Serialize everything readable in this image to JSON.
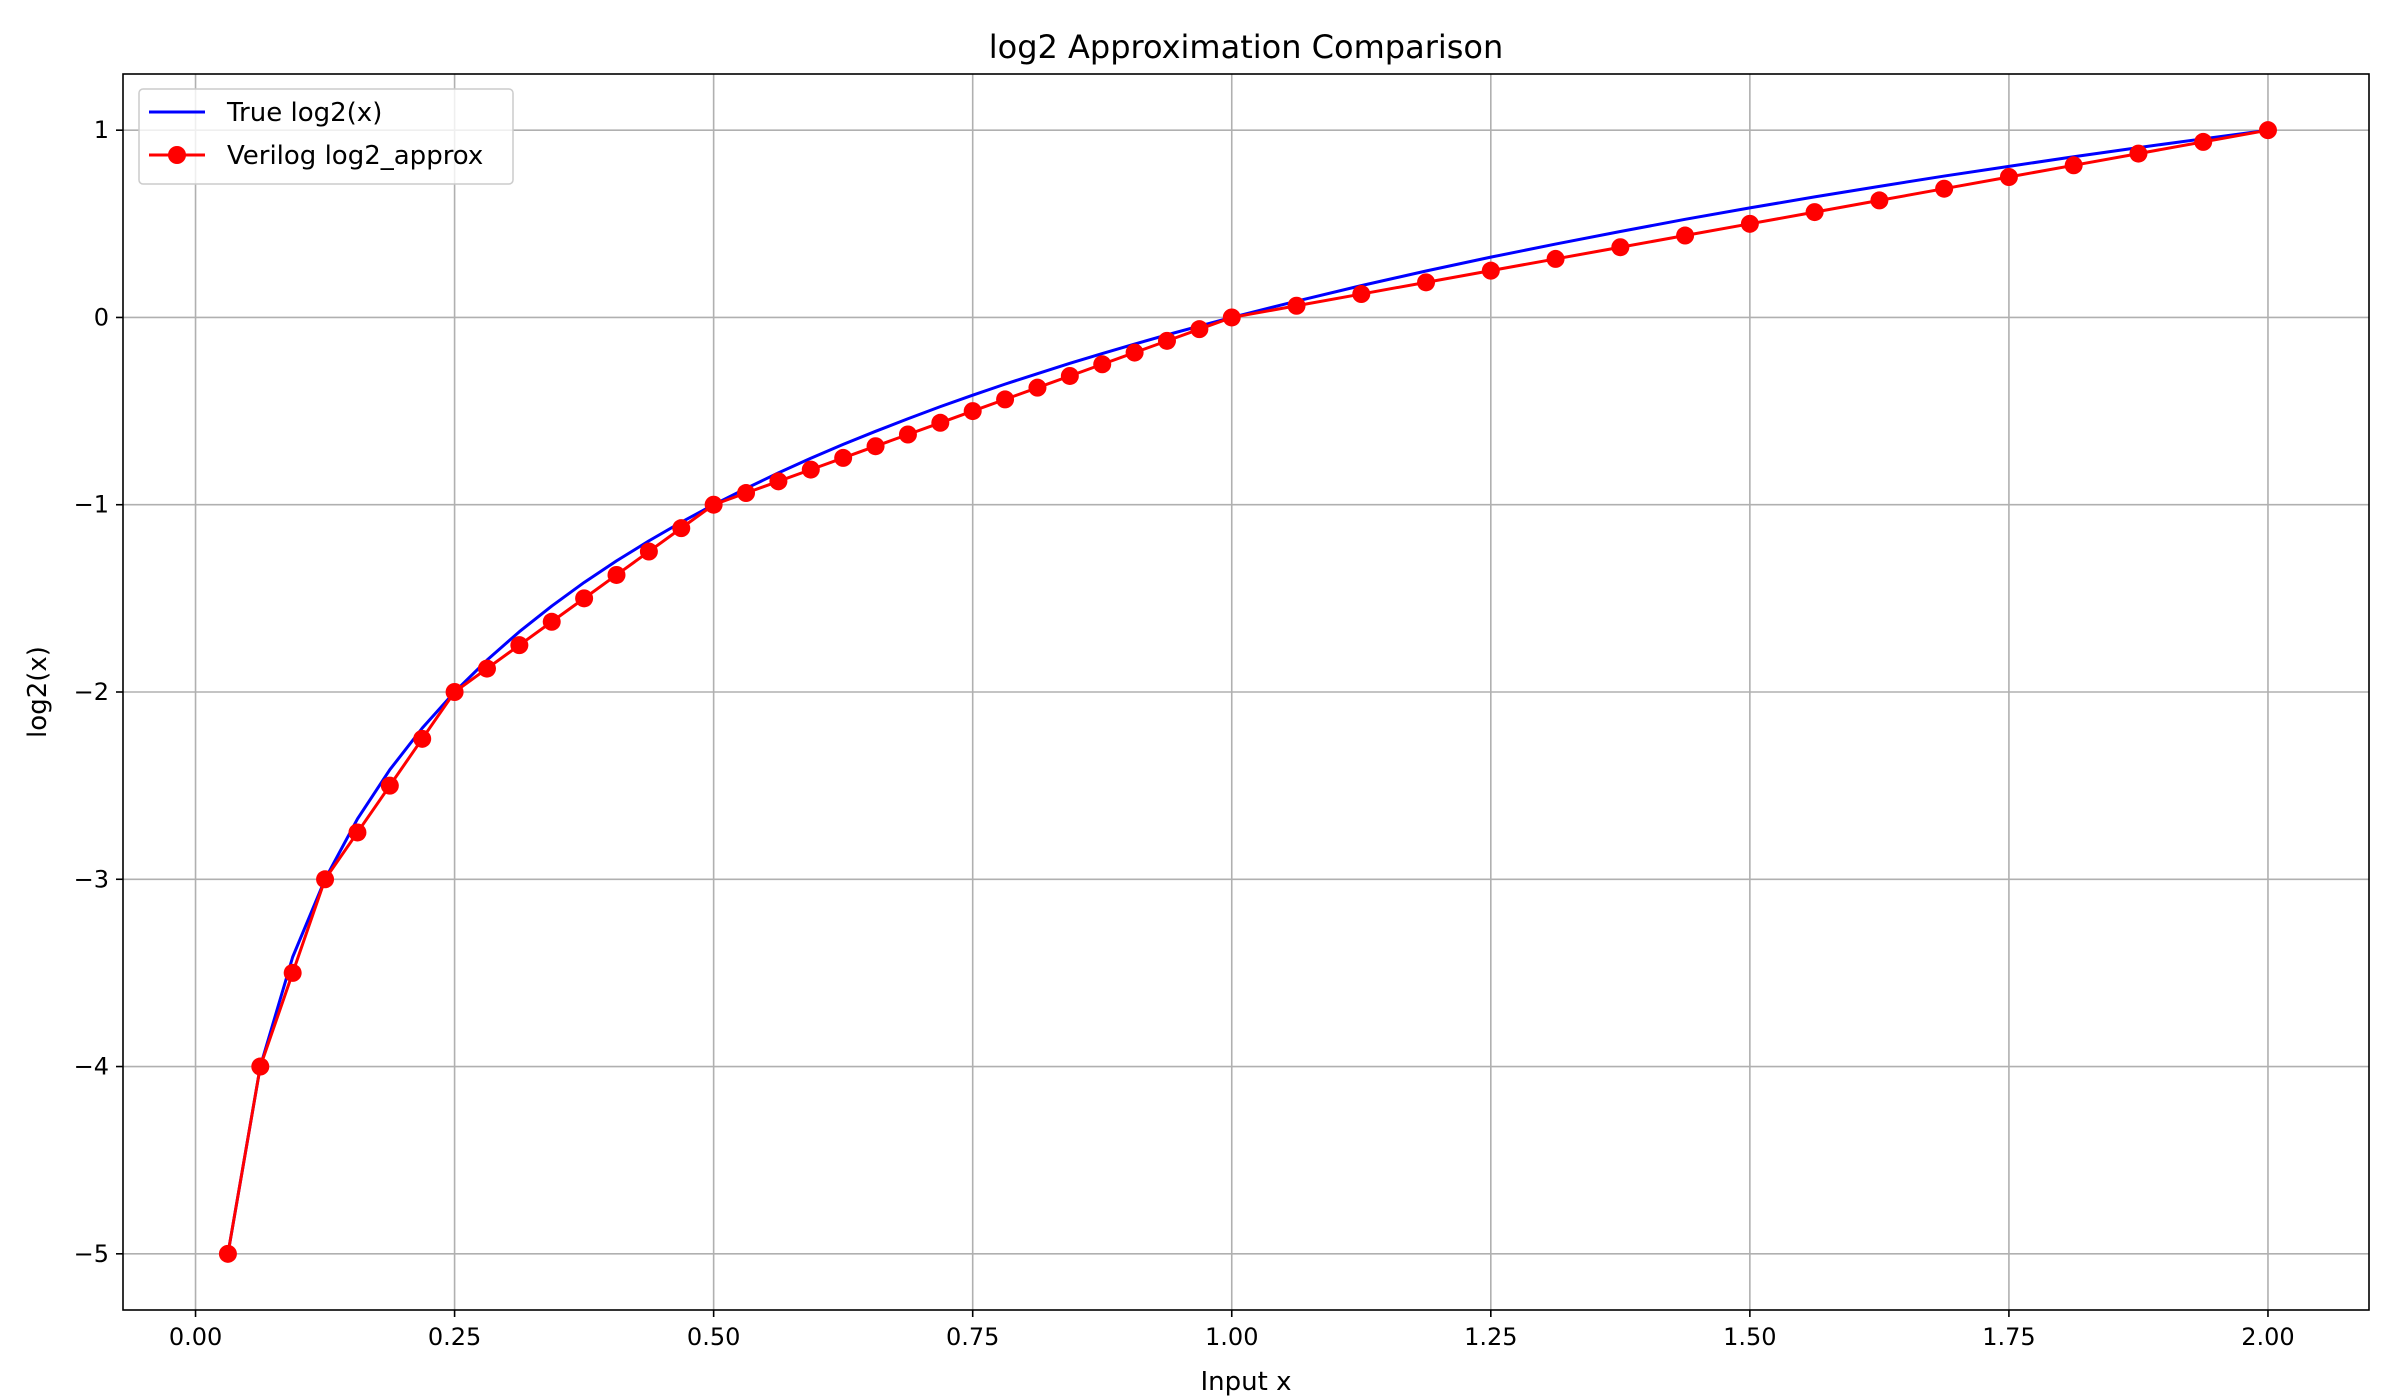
{
  "chart_data": {
    "type": "line",
    "title": "log2 Approximation Comparison",
    "xlabel": "Input x",
    "ylabel": "log2(x)",
    "xlim": [
      -0.07,
      2.0975
    ],
    "ylim": [
      -5.3,
      1.3
    ],
    "xticks": [
      0.0,
      0.25,
      0.5,
      0.75,
      1.0,
      1.25,
      1.5,
      1.75,
      2.0
    ],
    "xtick_labels": [
      "0.00",
      "0.25",
      "0.50",
      "0.75",
      "1.00",
      "1.25",
      "1.50",
      "1.75",
      "2.00"
    ],
    "yticks": [
      1,
      0,
      -1,
      -2,
      -3,
      -4,
      -5
    ],
    "ytick_labels": [
      "1",
      "0",
      "−1",
      "−2",
      "−3",
      "−4",
      "−5"
    ],
    "grid": true,
    "legend_position": "top-left",
    "series": [
      {
        "name": "True log2(x)",
        "color": "#0000ff",
        "marker": "none",
        "x": [
          0.03125,
          0.0625,
          0.09375,
          0.125,
          0.15625,
          0.1875,
          0.21875,
          0.25,
          0.28125,
          0.3125,
          0.34375,
          0.375,
          0.40625,
          0.4375,
          0.46875,
          0.5,
          0.53125,
          0.5625,
          0.59375,
          0.625,
          0.65625,
          0.6875,
          0.71875,
          0.75,
          0.78125,
          0.8125,
          0.84375,
          0.875,
          0.90625,
          0.9375,
          0.96875,
          1.0,
          1.0625,
          1.125,
          1.1875,
          1.25,
          1.3125,
          1.375,
          1.4375,
          1.5,
          1.5625,
          1.625,
          1.6875,
          1.75,
          1.8125,
          1.875,
          1.9375,
          2.0
        ],
        "y": [
          -5.0,
          -4.0,
          -3.415,
          -3.0,
          -2.678,
          -2.415,
          -2.193,
          -2.0,
          -1.83,
          -1.678,
          -1.541,
          -1.415,
          -1.3,
          -1.193,
          -1.093,
          -1.0,
          -0.913,
          -0.83,
          -0.752,
          -0.678,
          -0.608,
          -0.541,
          -0.476,
          -0.415,
          -0.356,
          -0.3,
          -0.245,
          -0.193,
          -0.142,
          -0.093,
          -0.046,
          0.0,
          0.087,
          0.17,
          0.248,
          0.322,
          0.392,
          0.459,
          0.524,
          0.585,
          0.644,
          0.7,
          0.755,
          0.807,
          0.858,
          0.907,
          0.954,
          1.0
        ]
      },
      {
        "name": "Verilog log2_approx",
        "color": "#ff0000",
        "marker": "circle",
        "x": [
          0.03125,
          0.0625,
          0.09375,
          0.125,
          0.15625,
          0.1875,
          0.21875,
          0.25,
          0.28125,
          0.3125,
          0.34375,
          0.375,
          0.40625,
          0.4375,
          0.46875,
          0.5,
          0.53125,
          0.5625,
          0.59375,
          0.625,
          0.65625,
          0.6875,
          0.71875,
          0.75,
          0.78125,
          0.8125,
          0.84375,
          0.875,
          0.90625,
          0.9375,
          0.96875,
          1.0,
          1.0625,
          1.125,
          1.1875,
          1.25,
          1.3125,
          1.375,
          1.4375,
          1.5,
          1.5625,
          1.625,
          1.6875,
          1.75,
          1.8125,
          1.875,
          1.9375,
          2.0
        ],
        "y": [
          -5.0,
          -4.0,
          -3.5,
          -3.0,
          -2.75,
          -2.5,
          -2.25,
          -2.0,
          -1.875,
          -1.75,
          -1.625,
          -1.5,
          -1.375,
          -1.25,
          -1.125,
          -1.0,
          -0.9375,
          -0.875,
          -0.8125,
          -0.75,
          -0.6875,
          -0.625,
          -0.5625,
          -0.5,
          -0.4375,
          -0.375,
          -0.3125,
          -0.25,
          -0.1875,
          -0.125,
          -0.0625,
          0.0,
          0.0625,
          0.125,
          0.1875,
          0.25,
          0.3125,
          0.375,
          0.4375,
          0.5,
          0.5625,
          0.625,
          0.6875,
          0.75,
          0.8125,
          0.875,
          0.9375,
          1.0
        ]
      }
    ]
  }
}
